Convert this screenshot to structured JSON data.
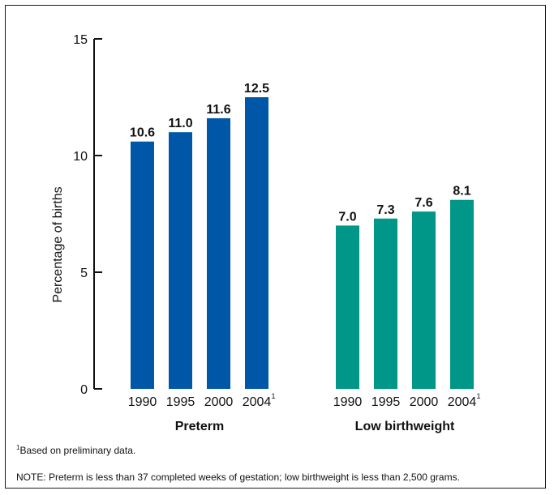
{
  "chart_data": {
    "type": "bar",
    "ylabel": "Percentage of births",
    "ylim": [
      0,
      15
    ],
    "yticks": [
      0,
      5,
      10,
      15
    ],
    "grid": false,
    "groups": [
      {
        "name": "Preterm",
        "color": "#0057a8",
        "categories": [
          "1990",
          "1995",
          "2000",
          "2004"
        ],
        "values": [
          10.6,
          11.0,
          11.6,
          12.5
        ],
        "value_labels": [
          "10.6",
          "11.0",
          "11.6",
          "12.5"
        ]
      },
      {
        "name": "Low birthweight",
        "color": "#009688",
        "categories": [
          "1990",
          "1995",
          "2000",
          "2004"
        ],
        "values": [
          7.0,
          7.3,
          7.6,
          8.1
        ],
        "value_labels": [
          "7.0",
          "7.3",
          "7.6",
          "8.1"
        ]
      }
    ],
    "footnote_marker": "1",
    "footnote_category": "2004"
  },
  "footnote": {
    "marker": "1",
    "text": "Based on preliminary data."
  },
  "note": "NOTE: Preterm is  less than 37 completed weeks of gestation; low birthweight is less than 2,500 grams."
}
